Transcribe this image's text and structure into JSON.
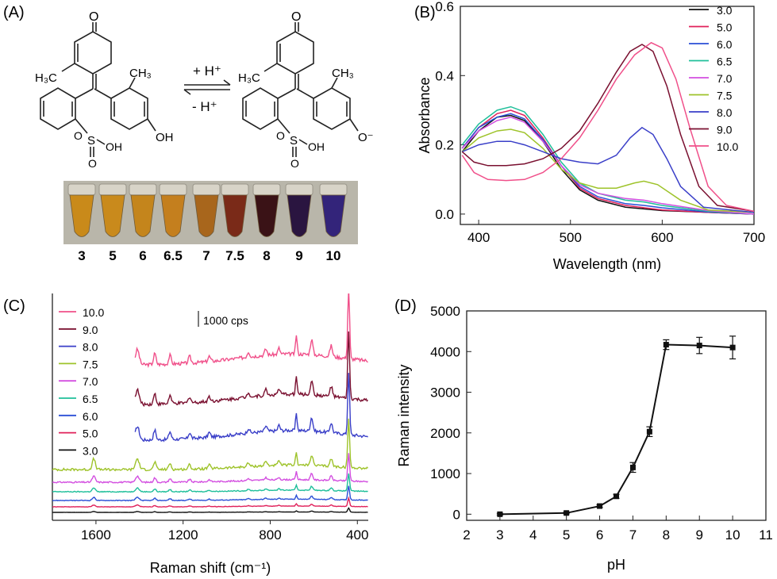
{
  "panels": {
    "a": {
      "label": "(A)",
      "arrow_top": "+ H⁺",
      "arrow_bottom": "- H⁺",
      "left_molecule": {
        "methyl_1": "H₃C",
        "methyl_2": "CH₃",
        "oxo": "O",
        "sulfonate_s": "S",
        "sulfonate_oh": "OH",
        "sulfonate_o1": "O",
        "sulfonate_o2": "O",
        "phenol": "OH"
      },
      "right_molecule": {
        "methyl_1": "H₃C",
        "methyl_2": "CH₃",
        "oxo": "O",
        "sulfonate_s": "S",
        "sulfonate_oh": "OH",
        "sulfonate_o1": "O",
        "sulfonate_o2": "O",
        "phenolate": "O⁻"
      },
      "vials": [
        {
          "label": "3",
          "color": "#c98a1a"
        },
        {
          "label": "5",
          "color": "#c98a1c"
        },
        {
          "label": "6",
          "color": "#c4851c"
        },
        {
          "label": "6.5",
          "color": "#c47f1e"
        },
        {
          "label": "7",
          "color": "#a8661c"
        },
        {
          "label": "7.5",
          "color": "#7a2a18"
        },
        {
          "label": "8",
          "color": "#3a1216"
        },
        {
          "label": "9",
          "color": "#2a1540"
        },
        {
          "label": "10",
          "color": "#33247a"
        }
      ]
    },
    "b": {
      "label": "(B)"
    },
    "c": {
      "label": "(C)",
      "scale_label": "1000 cps"
    },
    "d": {
      "label": "(D)"
    }
  },
  "chart_data": [
    {
      "panel": "B",
      "type": "line",
      "xlabel": "Wavelength (nm)",
      "ylabel": "Absorbance",
      "xlim": [
        380,
        700
      ],
      "ylim": [
        -0.03,
        0.6
      ],
      "xticks": [
        400,
        500,
        600,
        700
      ],
      "yticks": [
        0.0,
        0.2,
        0.4,
        0.6
      ],
      "xtick_labels": [
        "400",
        "500",
        "600",
        "700"
      ],
      "ytick_labels": [
        "0.0",
        "0.2",
        "0.4",
        "0.6"
      ],
      "legend_position": "top-right",
      "series": [
        {
          "name": "3.0",
          "color": "#111111",
          "values": [
            [
              382,
              0.18
            ],
            [
              400,
              0.24
            ],
            [
              420,
              0.28
            ],
            [
              435,
              0.285
            ],
            [
              450,
              0.27
            ],
            [
              470,
              0.21
            ],
            [
              490,
              0.13
            ],
            [
              510,
              0.07
            ],
            [
              530,
              0.04
            ],
            [
              560,
              0.02
            ],
            [
              600,
              0.01
            ],
            [
              650,
              0.005
            ],
            [
              700,
              0.0
            ]
          ]
        },
        {
          "name": "5.0",
          "color": "#e0205a",
          "values": [
            [
              382,
              0.19
            ],
            [
              400,
              0.25
            ],
            [
              420,
              0.29
            ],
            [
              435,
              0.3
            ],
            [
              450,
              0.285
            ],
            [
              470,
              0.22
            ],
            [
              490,
              0.14
            ],
            [
              510,
              0.075
            ],
            [
              530,
              0.045
            ],
            [
              560,
              0.025
            ],
            [
              600,
              0.012
            ],
            [
              650,
              0.005
            ],
            [
              700,
              0.0
            ]
          ]
        },
        {
          "name": "6.0",
          "color": "#2a4fd6",
          "values": [
            [
              382,
              0.19
            ],
            [
              400,
              0.25
            ],
            [
              420,
              0.28
            ],
            [
              435,
              0.29
            ],
            [
              450,
              0.275
            ],
            [
              470,
              0.215
            ],
            [
              490,
              0.14
            ],
            [
              510,
              0.08
            ],
            [
              530,
              0.05
            ],
            [
              560,
              0.03
            ],
            [
              580,
              0.025
            ],
            [
              600,
              0.018
            ],
            [
              650,
              0.006
            ],
            [
              700,
              0.0
            ]
          ]
        },
        {
          "name": "6.5",
          "color": "#1fbf9a",
          "values": [
            [
              382,
              0.2
            ],
            [
              400,
              0.26
            ],
            [
              420,
              0.3
            ],
            [
              435,
              0.31
            ],
            [
              450,
              0.295
            ],
            [
              470,
              0.23
            ],
            [
              490,
              0.15
            ],
            [
              510,
              0.09
            ],
            [
              530,
              0.06
            ],
            [
              560,
              0.04
            ],
            [
              580,
              0.035
            ],
            [
              600,
              0.025
            ],
            [
              650,
              0.008
            ],
            [
              700,
              0.0
            ]
          ]
        },
        {
          "name": "7.0",
          "color": "#d34fe0",
          "values": [
            [
              382,
              0.19
            ],
            [
              400,
              0.24
            ],
            [
              420,
              0.27
            ],
            [
              435,
              0.28
            ],
            [
              450,
              0.265
            ],
            [
              470,
              0.21
            ],
            [
              490,
              0.14
            ],
            [
              510,
              0.085
            ],
            [
              530,
              0.06
            ],
            [
              560,
              0.045
            ],
            [
              580,
              0.04
            ],
            [
              600,
              0.03
            ],
            [
              650,
              0.01
            ],
            [
              700,
              0.0
            ]
          ]
        },
        {
          "name": "7.5",
          "color": "#9ec32a",
          "values": [
            [
              382,
              0.18
            ],
            [
              400,
              0.22
            ],
            [
              420,
              0.24
            ],
            [
              435,
              0.245
            ],
            [
              450,
              0.235
            ],
            [
              470,
              0.19
            ],
            [
              490,
              0.13
            ],
            [
              510,
              0.09
            ],
            [
              530,
              0.075
            ],
            [
              550,
              0.075
            ],
            [
              570,
              0.09
            ],
            [
              580,
              0.095
            ],
            [
              595,
              0.085
            ],
            [
              620,
              0.04
            ],
            [
              650,
              0.012
            ],
            [
              700,
              0.005
            ]
          ]
        },
        {
          "name": "8.0",
          "color": "#3a3fc8",
          "values": [
            [
              382,
              0.18
            ],
            [
              400,
              0.2
            ],
            [
              420,
              0.21
            ],
            [
              435,
              0.21
            ],
            [
              450,
              0.2
            ],
            [
              470,
              0.18
            ],
            [
              490,
              0.16
            ],
            [
              510,
              0.15
            ],
            [
              530,
              0.145
            ],
            [
              550,
              0.17
            ],
            [
              565,
              0.22
            ],
            [
              578,
              0.25
            ],
            [
              590,
              0.23
            ],
            [
              605,
              0.16
            ],
            [
              620,
              0.08
            ],
            [
              645,
              0.02
            ],
            [
              700,
              0.005
            ]
          ]
        },
        {
          "name": "9.0",
          "color": "#7a1030",
          "values": [
            [
              382,
              0.18
            ],
            [
              395,
              0.15
            ],
            [
              410,
              0.14
            ],
            [
              430,
              0.14
            ],
            [
              450,
              0.145
            ],
            [
              470,
              0.16
            ],
            [
              490,
              0.19
            ],
            [
              510,
              0.24
            ],
            [
              530,
              0.32
            ],
            [
              550,
              0.41
            ],
            [
              565,
              0.47
            ],
            [
              578,
              0.49
            ],
            [
              590,
              0.47
            ],
            [
              605,
              0.37
            ],
            [
              620,
              0.23
            ],
            [
              640,
              0.08
            ],
            [
              660,
              0.025
            ],
            [
              700,
              0.008
            ]
          ]
        },
        {
          "name": "10.0",
          "color": "#f0508a",
          "values": [
            [
              382,
              0.17
            ],
            [
              395,
              0.12
            ],
            [
              410,
              0.1
            ],
            [
              430,
              0.097
            ],
            [
              450,
              0.1
            ],
            [
              470,
              0.12
            ],
            [
              490,
              0.16
            ],
            [
              510,
              0.22
            ],
            [
              530,
              0.3
            ],
            [
              550,
              0.39
            ],
            [
              570,
              0.46
            ],
            [
              588,
              0.495
            ],
            [
              600,
              0.48
            ],
            [
              615,
              0.39
            ],
            [
              630,
              0.25
            ],
            [
              650,
              0.08
            ],
            [
              670,
              0.025
            ],
            [
              700,
              0.008
            ]
          ]
        }
      ]
    },
    {
      "panel": "C",
      "type": "line",
      "xlabel": "Raman shift (cm⁻¹)",
      "ylabel": "",
      "xlim": [
        1800,
        350
      ],
      "xticks": [
        1600,
        1200,
        800,
        400
      ],
      "xtick_labels": [
        "1600",
        "1200",
        "800",
        "400"
      ],
      "legend_position": "top-left",
      "series": [
        {
          "name": "10.0",
          "color": "#f0508a",
          "baseline": 460,
          "peak": 1.0
        },
        {
          "name": "9.0",
          "color": "#7a1030",
          "baseline": 510,
          "peak": 0.95
        },
        {
          "name": "8.0",
          "color": "#3a3fc8",
          "baseline": 555,
          "peak": 0.9
        },
        {
          "name": "7.5",
          "color": "#9ec32a",
          "baseline": 592,
          "peak": 0.7
        },
        {
          "name": "7.0",
          "color": "#d34fe0",
          "baseline": 608,
          "peak": 0.4
        },
        {
          "name": "6.5",
          "color": "#1fbf9a",
          "baseline": 620,
          "peak": 0.25
        },
        {
          "name": "6.0",
          "color": "#2a4fd6",
          "baseline": 631,
          "peak": 0.2
        },
        {
          "name": "5.0",
          "color": "#e0205a",
          "baseline": 639,
          "peak": 0.12
        },
        {
          "name": "3.0",
          "color": "#111111",
          "baseline": 646,
          "peak": 0.06
        }
      ]
    },
    {
      "panel": "D",
      "type": "line",
      "xlabel": "pH",
      "ylabel": "Raman intensity",
      "xlim": [
        2,
        11
      ],
      "ylim": [
        -150,
        5000
      ],
      "xticks": [
        2,
        3,
        4,
        5,
        6,
        7,
        8,
        9,
        10,
        11
      ],
      "yticks": [
        0,
        1000,
        2000,
        3000,
        4000,
        5000
      ],
      "xtick_labels": [
        "2",
        "3",
        "4",
        "5",
        "6",
        "7",
        "8",
        "9",
        "10",
        "11"
      ],
      "ytick_labels": [
        "0",
        "1000",
        "2000",
        "3000",
        "4000",
        "5000"
      ],
      "x": [
        3,
        5,
        6,
        6.5,
        7,
        7.5,
        8,
        9,
        10
      ],
      "y": [
        0,
        30,
        200,
        440,
        1150,
        2030,
        4170,
        4150,
        4100
      ],
      "err": [
        20,
        20,
        30,
        50,
        120,
        120,
        120,
        200,
        280
      ],
      "color": "#111111"
    }
  ]
}
